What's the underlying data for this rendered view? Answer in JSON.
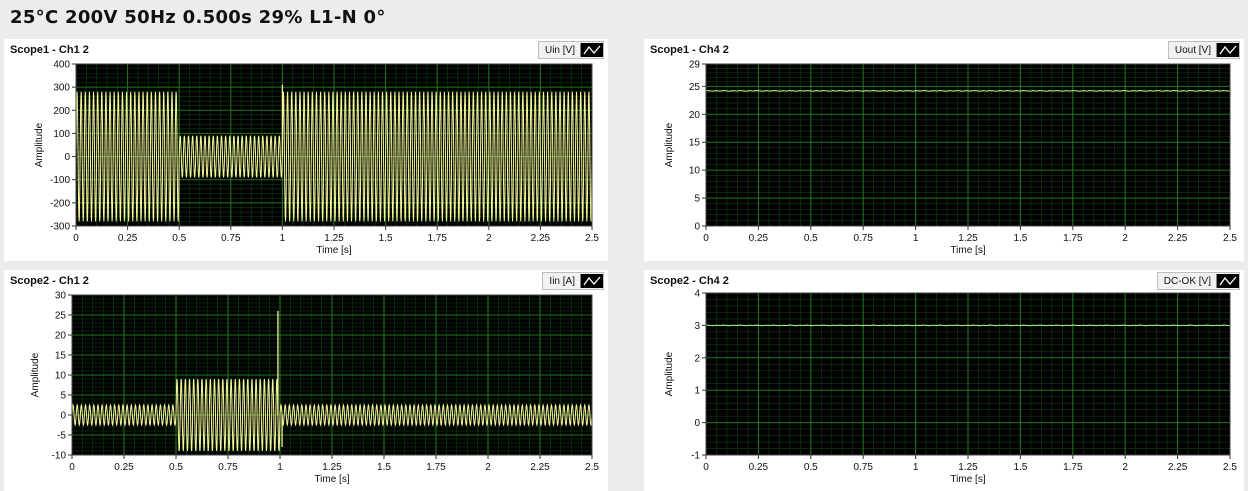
{
  "status_bar": {
    "text": "25°C  200V  50Hz  0.500s  29%  L1-N  0°"
  },
  "colors": {
    "plot_bg": "#000000",
    "grid": "#1e7a1e",
    "trace_yellow": "#f5f59a",
    "trace_green": "#b7f27f"
  },
  "scopes": [
    {
      "title": "Scope1 - Ch1 2",
      "legend": "Uin [V]"
    },
    {
      "title": "Scope1 - Ch4 2",
      "legend": "Uout [V]"
    },
    {
      "title": "Scope2 - Ch1  2",
      "legend": "Iin [A]"
    },
    {
      "title": "Scope2 - Ch4 2",
      "legend": "DC-OK [V]"
    }
  ],
  "chart_data": [
    {
      "type": "line",
      "title": "Scope1 - Ch1 2",
      "xlabel": "Time [s]",
      "ylabel": "Amplitude",
      "xlim": [
        0,
        2.5
      ],
      "ylim": [
        -300,
        400
      ],
      "xticks": [
        0,
        0.25,
        0.5,
        0.75,
        1,
        1.25,
        1.5,
        1.75,
        2,
        2.25,
        2.5
      ],
      "xtick_labels": [
        "0",
        "0.25",
        "0.5",
        "0.75",
        "1",
        "1.25",
        "1.5",
        "1.75",
        "2",
        "2.25",
        "2.5"
      ],
      "yticks": [
        -300,
        -200,
        -100,
        0,
        100,
        200,
        300,
        400
      ],
      "ytick_labels": [
        "-300",
        "-200",
        "-100",
        "0",
        "100",
        "200",
        "300",
        "400"
      ],
      "grid": true,
      "series": [
        {
          "name": "Uin [V]",
          "color": "#f5f59a",
          "segments": [
            {
              "x_start": 0,
              "x_end": 0.5,
              "amplitude": 280,
              "offset": 0,
              "frequency_hz": 50
            },
            {
              "x_start": 0.5,
              "x_end": 1.0,
              "amplitude": 90,
              "offset": 0,
              "frequency_hz": 50
            },
            {
              "x_start": 1.0,
              "x_end": 2.5,
              "amplitude": 280,
              "offset": 0,
              "frequency_hz": 50
            }
          ],
          "spikes": [
            {
              "x": 1.0,
              "y": 310
            }
          ]
        }
      ]
    },
    {
      "type": "line",
      "title": "Scope1 - Ch4 2",
      "xlabel": "Time [s]",
      "ylabel": "Amplitude",
      "xlim": [
        0,
        2.5
      ],
      "ylim": [
        0,
        29
      ],
      "xticks": [
        0,
        0.25,
        0.5,
        0.75,
        1,
        1.25,
        1.5,
        1.75,
        2,
        2.25,
        2.5
      ],
      "xtick_labels": [
        "0",
        "0.25",
        "0.5",
        "0.75",
        "1",
        "1.25",
        "1.5",
        "1.75",
        "2",
        "2.25",
        "2.5"
      ],
      "yticks": [
        0,
        5,
        10,
        15,
        20,
        25,
        29
      ],
      "ytick_labels": [
        "0",
        "5",
        "10",
        "15",
        "20",
        "25",
        "29"
      ],
      "grid": true,
      "series": [
        {
          "name": "Uout [V]",
          "color": "#b7f27f",
          "segments": [
            {
              "x_start": 0,
              "x_end": 2.5,
              "amplitude": 0,
              "offset": 24.2,
              "frequency_hz": 0
            }
          ],
          "spikes": []
        }
      ]
    },
    {
      "type": "line",
      "title": "Scope2 - Ch1  2",
      "xlabel": "Time [s]",
      "ylabel": "Amplitude",
      "xlim": [
        0,
        2.5
      ],
      "ylim": [
        -10,
        30
      ],
      "xticks": [
        0,
        0.25,
        0.5,
        0.75,
        1,
        1.25,
        1.5,
        1.75,
        2,
        2.25,
        2.5
      ],
      "xtick_labels": [
        "0",
        "0.25",
        "0.5",
        "0.75",
        "1",
        "1.25",
        "1.5",
        "1.75",
        "2",
        "2.25",
        "2.5"
      ],
      "yticks": [
        -10,
        -5,
        0,
        5,
        10,
        15,
        20,
        25,
        30
      ],
      "ytick_labels": [
        "-10",
        "-5",
        "0",
        "5",
        "10",
        "15",
        "20",
        "25",
        "30"
      ],
      "grid": true,
      "series": [
        {
          "name": "Iin [A]",
          "color": "#f5f59a",
          "segments": [
            {
              "x_start": 0,
              "x_end": 0.5,
              "amplitude": 2.5,
              "offset": 0,
              "frequency_hz": 50
            },
            {
              "x_start": 0.5,
              "x_end": 1.0,
              "amplitude": 9,
              "offset": 0,
              "frequency_hz": 50
            },
            {
              "x_start": 1.0,
              "x_end": 2.5,
              "amplitude": 2.5,
              "offset": 0,
              "frequency_hz": 50
            }
          ],
          "spikes": [
            {
              "x": 0.99,
              "y": 26
            },
            {
              "x": 1.01,
              "y": -8
            }
          ]
        }
      ]
    },
    {
      "type": "line",
      "title": "Scope2 - Ch4 2",
      "xlabel": "Time [s]",
      "ylabel": "Amplitude",
      "xlim": [
        0,
        2.5
      ],
      "ylim": [
        -1,
        4
      ],
      "xticks": [
        0,
        0.25,
        0.5,
        0.75,
        1,
        1.25,
        1.5,
        1.75,
        2,
        2.25,
        2.5
      ],
      "xtick_labels": [
        "0",
        "0.25",
        "0.5",
        "0.75",
        "1",
        "1.25",
        "1.5",
        "1.75",
        "2",
        "2.25",
        "2.5"
      ],
      "yticks": [
        -1,
        0,
        1,
        2,
        3,
        4
      ],
      "ytick_labels": [
        "-1",
        "0",
        "1",
        "2",
        "3",
        "4"
      ],
      "grid": true,
      "series": [
        {
          "name": "DC-OK [V]",
          "color": "#b7f27f",
          "segments": [
            {
              "x_start": 0,
              "x_end": 2.5,
              "amplitude": 0,
              "offset": 3.0,
              "frequency_hz": 0
            }
          ],
          "spikes": []
        }
      ]
    }
  ]
}
